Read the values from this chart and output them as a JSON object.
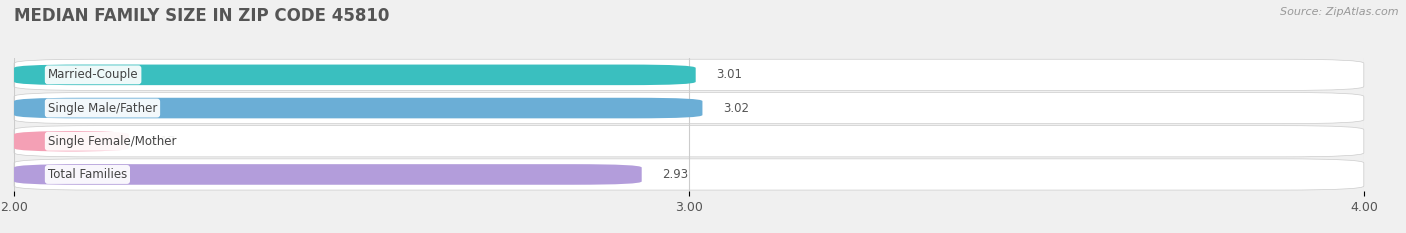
{
  "title": "MEDIAN FAMILY SIZE IN ZIP CODE 45810",
  "source": "Source: ZipAtlas.com",
  "categories": [
    "Married-Couple",
    "Single Male/Father",
    "Single Female/Mother",
    "Total Families"
  ],
  "values": [
    3.01,
    3.02,
    2.17,
    2.93
  ],
  "bar_colors": [
    "#3abfbf",
    "#6baed6",
    "#f4a0b5",
    "#b39ddb"
  ],
  "background_color": "#f0f0f0",
  "row_bg_colors": [
    "#e8e8e8",
    "#e0e0e0",
    "#e8e8e8",
    "#e0e0e0"
  ],
  "xlim": [
    2.0,
    4.0
  ],
  "xticks": [
    2.0,
    3.0,
    4.0
  ],
  "xtick_labels": [
    "2.00",
    "3.00",
    "4.00"
  ],
  "bar_height": 0.62,
  "label_color": "#555555",
  "value_color": "#555555",
  "title_color": "#555555",
  "title_fontsize": 12,
  "label_fontsize": 8.5,
  "value_fontsize": 8.5,
  "tick_fontsize": 9
}
